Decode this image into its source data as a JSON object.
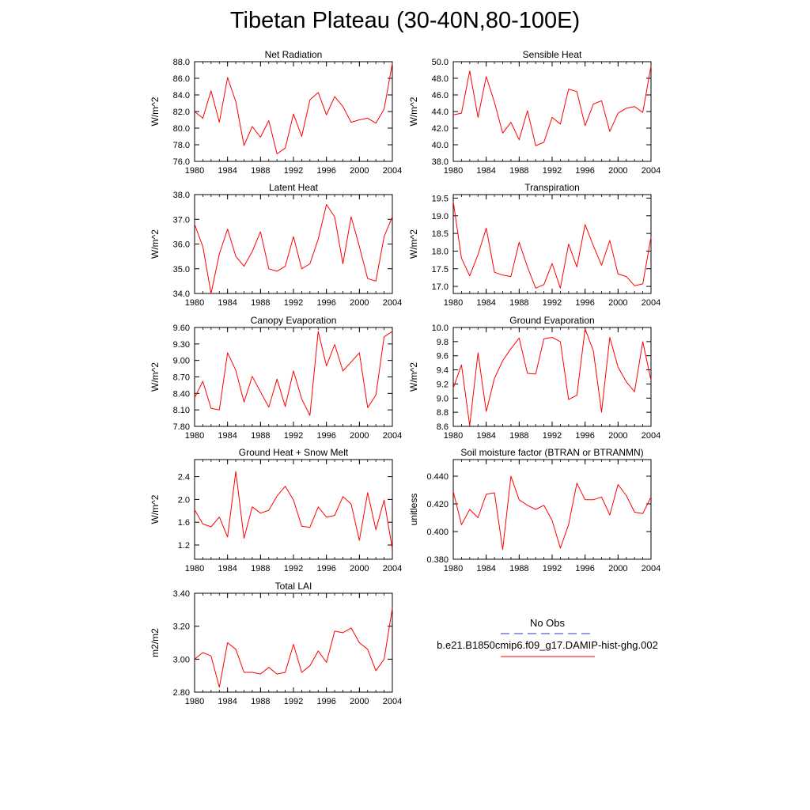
{
  "title": "Tibetan Plateau (30-40N,80-100E)",
  "colors": {
    "model": "#ff0000",
    "obs": "#1f3ec7",
    "axis": "#000000"
  },
  "legend": {
    "obs_label": "No Obs",
    "model_label": "b.e21.B1850cmip6.f09_g17.DAMIP-hist-ghg.002"
  },
  "chart_data": [
    {
      "type": "line",
      "title": "Net Radiation",
      "ylabel": "W/m^2",
      "xlim": [
        1980,
        2004
      ],
      "ylim": [
        76.0,
        88.0
      ],
      "xticks": [
        "1980",
        "1984",
        "1988",
        "1992",
        "1996",
        "2000",
        "2004"
      ],
      "yticks": [
        "76.0",
        "78.0",
        "80.0",
        "82.0",
        "84.0",
        "86.0",
        "88.0"
      ],
      "x": [
        1980,
        1981,
        1982,
        1983,
        1984,
        1985,
        1986,
        1987,
        1988,
        1989,
        1990,
        1991,
        1992,
        1993,
        1994,
        1995,
        1996,
        1997,
        1998,
        1999,
        2000,
        2001,
        2002,
        2003,
        2004
      ],
      "series": [
        {
          "values": [
            82.0,
            81.2,
            84.5,
            80.7,
            86.1,
            83.2,
            77.9,
            80.2,
            78.9,
            80.9,
            76.9,
            77.6,
            81.7,
            79.0,
            83.4,
            84.3,
            81.6,
            83.8,
            82.6,
            80.7,
            81.0,
            81.2,
            80.6,
            82.3,
            87.8
          ]
        }
      ]
    },
    {
      "type": "line",
      "title": "Sensible Heat",
      "ylabel": "W/m^2",
      "xlim": [
        1980,
        2004
      ],
      "ylim": [
        38.0,
        50.0
      ],
      "xticks": [
        "1980",
        "1984",
        "1988",
        "1992",
        "1996",
        "2000",
        "2004"
      ],
      "yticks": [
        "38.0",
        "40.0",
        "42.0",
        "44.0",
        "46.0",
        "48.0",
        "50.0"
      ],
      "x": [
        1980,
        1981,
        1982,
        1983,
        1984,
        1985,
        1986,
        1987,
        1988,
        1989,
        1990,
        1991,
        1992,
        1993,
        1994,
        1995,
        1996,
        1997,
        1998,
        1999,
        2000,
        2001,
        2002,
        2003,
        2004
      ],
      "series": [
        {
          "values": [
            43.6,
            43.8,
            48.9,
            43.3,
            48.2,
            45.1,
            41.4,
            42.7,
            40.6,
            44.1,
            39.9,
            40.3,
            43.3,
            42.5,
            46.7,
            46.4,
            42.3,
            44.9,
            45.3,
            41.6,
            43.8,
            44.4,
            44.6,
            43.9,
            49.5
          ]
        }
      ]
    },
    {
      "type": "line",
      "title": "Latent Heat",
      "ylabel": "W/m^2",
      "xlim": [
        1980,
        2004
      ],
      "ylim": [
        34.0,
        38.0
      ],
      "xticks": [
        "1980",
        "1984",
        "1988",
        "1992",
        "1996",
        "2000",
        "2004"
      ],
      "yticks": [
        "34.0",
        "35.0",
        "36.0",
        "37.0",
        "38.0"
      ],
      "x": [
        1980,
        1981,
        1982,
        1983,
        1984,
        1985,
        1986,
        1987,
        1988,
        1989,
        1990,
        1991,
        1992,
        1993,
        1994,
        1995,
        1996,
        1997,
        1998,
        1999,
        2000,
        2001,
        2002,
        2003,
        2004
      ],
      "series": [
        {
          "values": [
            36.8,
            35.9,
            34.0,
            35.6,
            36.6,
            35.5,
            35.1,
            35.7,
            36.5,
            35.0,
            34.9,
            35.1,
            36.3,
            35.0,
            35.2,
            36.2,
            37.6,
            37.1,
            35.2,
            37.1,
            35.9,
            34.6,
            34.5,
            36.3,
            37.1
          ]
        }
      ]
    },
    {
      "type": "line",
      "title": "Transpiration",
      "ylabel": "W/m^2",
      "xlim": [
        1980,
        2004
      ],
      "ylim": [
        16.8,
        19.6
      ],
      "xticks": [
        "1980",
        "1984",
        "1988",
        "1992",
        "1996",
        "2000",
        "2004"
      ],
      "yticks": [
        "17.0",
        "17.5",
        "18.0",
        "18.5",
        "19.0",
        "19.5"
      ],
      "x": [
        1980,
        1981,
        1982,
        1983,
        1984,
        1985,
        1986,
        1987,
        1988,
        1989,
        1990,
        1991,
        1992,
        1993,
        1994,
        1995,
        1996,
        1997,
        1998,
        1999,
        2000,
        2001,
        2002,
        2003,
        2004
      ],
      "series": [
        {
          "values": [
            19.4,
            17.8,
            17.3,
            17.9,
            18.65,
            17.4,
            17.32,
            17.28,
            18.25,
            17.55,
            16.95,
            17.05,
            17.65,
            16.95,
            18.2,
            17.55,
            18.75,
            18.15,
            17.6,
            18.3,
            17.35,
            17.28,
            17.02,
            17.07,
            18.4
          ]
        }
      ]
    },
    {
      "type": "line",
      "title": "Canopy Evaporation",
      "ylabel": "W/m^2",
      "xlim": [
        1980,
        2004
      ],
      "ylim": [
        7.8,
        9.6
      ],
      "xticks": [
        "1980",
        "1984",
        "1988",
        "1992",
        "1996",
        "2000",
        "2004"
      ],
      "yticks": [
        "7.80",
        "8.10",
        "8.40",
        "8.70",
        "9.00",
        "9.30",
        "9.60"
      ],
      "x": [
        1980,
        1981,
        1982,
        1983,
        1984,
        1985,
        1986,
        1987,
        1988,
        1989,
        1990,
        1991,
        1992,
        1993,
        1994,
        1995,
        1996,
        1997,
        1998,
        1999,
        2000,
        2001,
        2002,
        2003,
        2004
      ],
      "series": [
        {
          "values": [
            8.32,
            8.62,
            8.13,
            8.1,
            9.14,
            8.82,
            8.24,
            8.71,
            8.43,
            8.15,
            8.66,
            8.16,
            8.81,
            8.3,
            8.0,
            9.53,
            8.9,
            9.29,
            8.81,
            8.97,
            9.14,
            8.14,
            8.37,
            9.43,
            9.53
          ]
        }
      ]
    },
    {
      "type": "line",
      "title": "Ground Evaporation",
      "ylabel": "W/m^2",
      "xlim": [
        1980,
        2004
      ],
      "ylim": [
        8.6,
        10.0
      ],
      "xticks": [
        "1980",
        "1984",
        "1988",
        "1992",
        "1996",
        "2000",
        "2004"
      ],
      "yticks": [
        "8.6",
        "8.8",
        "9.0",
        "9.2",
        "9.4",
        "9.6",
        "9.8",
        "10.0"
      ],
      "x": [
        1980,
        1981,
        1982,
        1983,
        1984,
        1985,
        1986,
        1987,
        1988,
        1989,
        1990,
        1991,
        1992,
        1993,
        1994,
        1995,
        1996,
        1997,
        1998,
        1999,
        2000,
        2001,
        2002,
        2003,
        2004
      ],
      "series": [
        {
          "values": [
            9.14,
            9.47,
            8.61,
            9.64,
            8.81,
            9.28,
            9.53,
            9.7,
            9.85,
            9.35,
            9.34,
            9.84,
            9.86,
            9.8,
            8.98,
            9.04,
            9.98,
            9.67,
            8.8,
            9.86,
            9.44,
            9.23,
            9.09,
            9.8,
            9.25
          ]
        }
      ]
    },
    {
      "type": "line",
      "title": "Ground Heat + Snow Melt",
      "ylabel": "W/m^2",
      "xlim": [
        1980,
        2004
      ],
      "ylim": [
        0.95,
        2.7
      ],
      "xticks": [
        "1980",
        "1984",
        "1988",
        "1992",
        "1996",
        "2000",
        "2004"
      ],
      "yticks": [
        "1.2",
        "1.6",
        "2.0",
        "2.4"
      ],
      "x": [
        1980,
        1981,
        1982,
        1983,
        1984,
        1985,
        1986,
        1987,
        1988,
        1989,
        1990,
        1991,
        1992,
        1993,
        1994,
        1995,
        1996,
        1997,
        1998,
        1999,
        2000,
        2001,
        2002,
        2003,
        2004
      ],
      "series": [
        {
          "values": [
            1.82,
            1.57,
            1.52,
            1.69,
            1.34,
            2.49,
            1.32,
            1.87,
            1.76,
            1.81,
            2.06,
            2.23,
            1.99,
            1.53,
            1.51,
            1.87,
            1.69,
            1.72,
            2.05,
            1.92,
            1.28,
            2.12,
            1.47,
            1.99,
            1.13
          ]
        }
      ]
    },
    {
      "type": "line",
      "title": "Soil moisture factor (BTRAN or BTRANMN)",
      "ylabel": "unitless",
      "xlim": [
        1980,
        2004
      ],
      "ylim": [
        0.38,
        0.452
      ],
      "xticks": [
        "1980",
        "1984",
        "1988",
        "1992",
        "1996",
        "2000",
        "2004"
      ],
      "yticks": [
        "0.380",
        "0.400",
        "0.420",
        "0.440"
      ],
      "x": [
        1980,
        1981,
        1982,
        1983,
        1984,
        1985,
        1986,
        1987,
        1988,
        1989,
        1990,
        1991,
        1992,
        1993,
        1994,
        1995,
        1996,
        1997,
        1998,
        1999,
        2000,
        2001,
        2002,
        2003,
        2004
      ],
      "series": [
        {
          "values": [
            0.429,
            0.405,
            0.416,
            0.41,
            0.427,
            0.428,
            0.387,
            0.44,
            0.423,
            0.419,
            0.416,
            0.419,
            0.408,
            0.388,
            0.405,
            0.435,
            0.423,
            0.423,
            0.425,
            0.412,
            0.434,
            0.426,
            0.414,
            0.413,
            0.425
          ]
        }
      ]
    },
    {
      "type": "line",
      "title": "Total LAI",
      "ylabel": "m2/m2",
      "xlim": [
        1980,
        2004
      ],
      "ylim": [
        2.8,
        3.4
      ],
      "xticks": [
        "1980",
        "1984",
        "1988",
        "1992",
        "1996",
        "2000",
        "2004"
      ],
      "yticks": [
        "2.80",
        "3.00",
        "3.20",
        "3.40"
      ],
      "x": [
        1980,
        1981,
        1982,
        1983,
        1984,
        1985,
        1986,
        1987,
        1988,
        1989,
        1990,
        1991,
        1992,
        1993,
        1994,
        1995,
        1996,
        1997,
        1998,
        1999,
        2000,
        2001,
        2002,
        2003,
        2004
      ],
      "series": [
        {
          "values": [
            3.0,
            3.04,
            3.02,
            2.83,
            3.1,
            3.06,
            2.92,
            2.92,
            2.91,
            2.95,
            2.91,
            2.92,
            3.09,
            2.92,
            2.96,
            3.05,
            2.98,
            3.17,
            3.16,
            3.19,
            3.1,
            3.06,
            2.93,
            3.0,
            3.31
          ]
        }
      ]
    }
  ]
}
